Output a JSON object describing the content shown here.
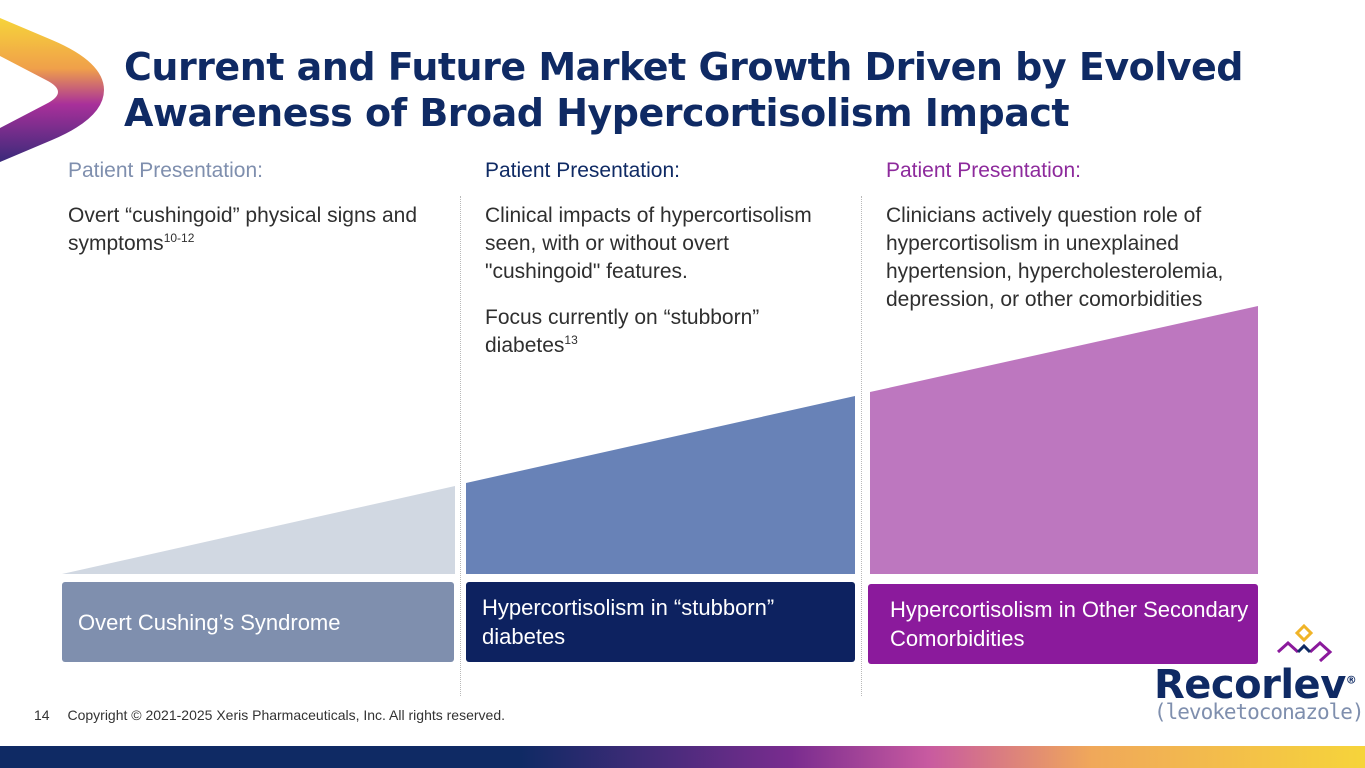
{
  "slide": {
    "title_line1": "Current and Future Market Growth Driven by Evolved",
    "title_line2": "Awareness of Broad Hypercortisolism Impact",
    "page_number": "14",
    "copyright": "Copyright © 2021-2025 Xeris Pharmaceuticals, Inc. All rights reserved."
  },
  "columns": [
    {
      "heading": "Patient Presentation:",
      "description": "Overt “cushingoid” physical signs and symptoms",
      "description_sup": "10-12",
      "label": "Overt Cushing’s Syndrome"
    },
    {
      "heading": "Patient Presentation:",
      "description": "Clinical impacts of hypercortisolism seen, with or without overt \"cushingoid\" features.",
      "focus": "Focus currently on “stubborn” diabetes",
      "focus_sup": "13",
      "label": "Hypercortisolism in “stubborn” diabetes"
    },
    {
      "heading": "Patient Presentation:",
      "description": "Clinicians actively question role of hypercortisolism in unexplained hypertension, hypercholesterolemia, depression, or other comorbidities",
      "label": "Hypercortisolism in Other Secondary Comorbidities"
    }
  ],
  "brand": {
    "name": "Recorlev",
    "registered": "®",
    "generic": "(levoketoconazole)"
  },
  "colors": {
    "navy": "#0f2a64",
    "slate": "#7f8fae",
    "blue": "#6882b7",
    "purple": "#8b1a9c",
    "orchid": "#bd77bf",
    "gray_fill": "#d1d8e2"
  }
}
